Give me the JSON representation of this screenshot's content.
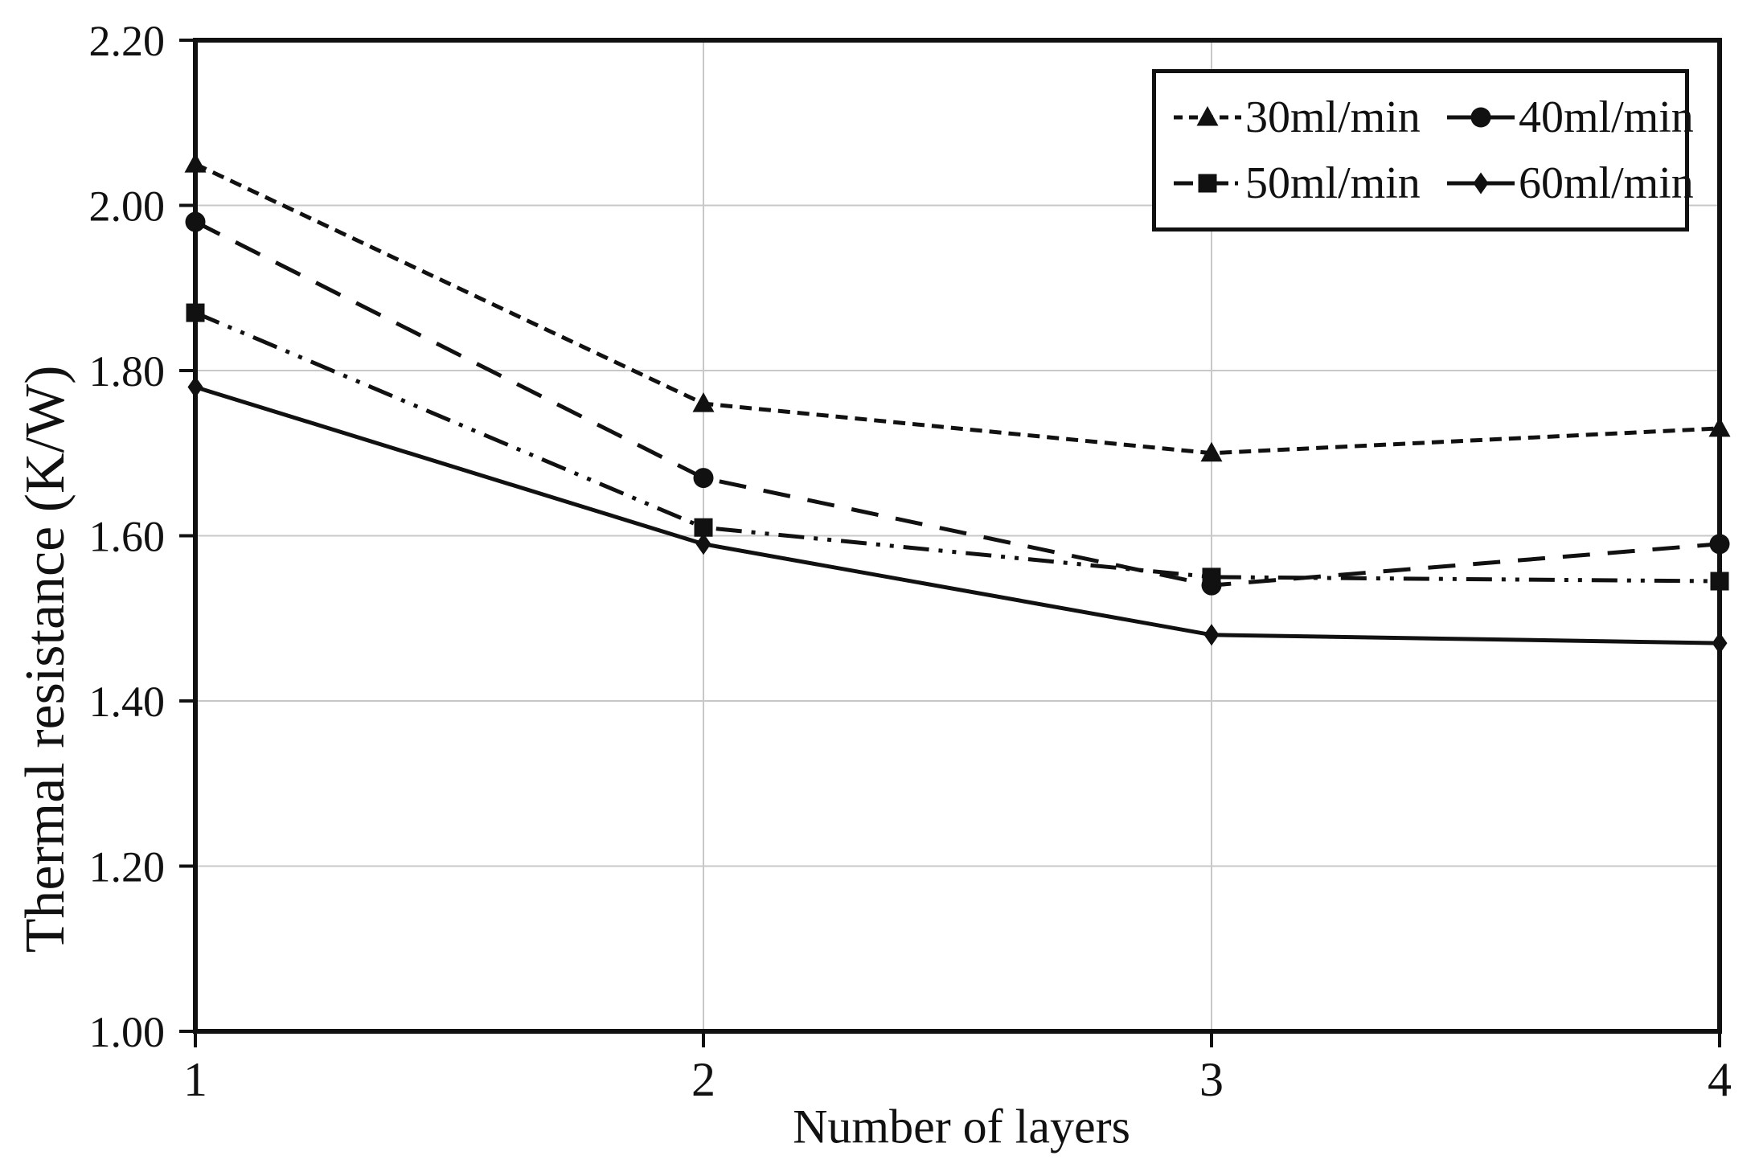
{
  "figure": {
    "background": "#ffffff"
  },
  "chart_data": {
    "type": "line",
    "title": "",
    "xlabel": "Number of layers",
    "ylabel": "Thermal resistance (K/W)",
    "x": [
      1,
      2,
      3,
      4
    ],
    "xlim": [
      1,
      4
    ],
    "ylim": [
      1.0,
      2.2
    ],
    "x_tick_labels": [
      "1",
      "2",
      "3",
      "4"
    ],
    "y_ticks": [
      1.0,
      1.2,
      1.4,
      1.6,
      1.8,
      2.0,
      2.2
    ],
    "y_tick_labels": [
      "1.00",
      "1.20",
      "1.40",
      "1.60",
      "1.80",
      "2.00",
      "2.20"
    ],
    "grid": true,
    "legend_position": "top-right",
    "series": [
      {
        "name": "30ml/min",
        "marker": "triangle",
        "line_style": "dotted",
        "values": [
          2.05,
          1.76,
          1.7,
          1.73
        ]
      },
      {
        "name": "40ml/min",
        "marker": "circle",
        "line_style": "dashed",
        "values": [
          1.98,
          1.67,
          1.54,
          1.59
        ]
      },
      {
        "name": "50ml/min",
        "marker": "square",
        "line_style": "dashdotdot",
        "values": [
          1.87,
          1.61,
          1.55,
          1.545
        ]
      },
      {
        "name": "60ml/min",
        "marker": "diamond",
        "line_style": "solid",
        "values": [
          1.78,
          1.59,
          1.48,
          1.47
        ]
      }
    ],
    "colors": {
      "ink": "#111111",
      "grid": "#c8c8c8",
      "background": "#ffffff"
    }
  }
}
